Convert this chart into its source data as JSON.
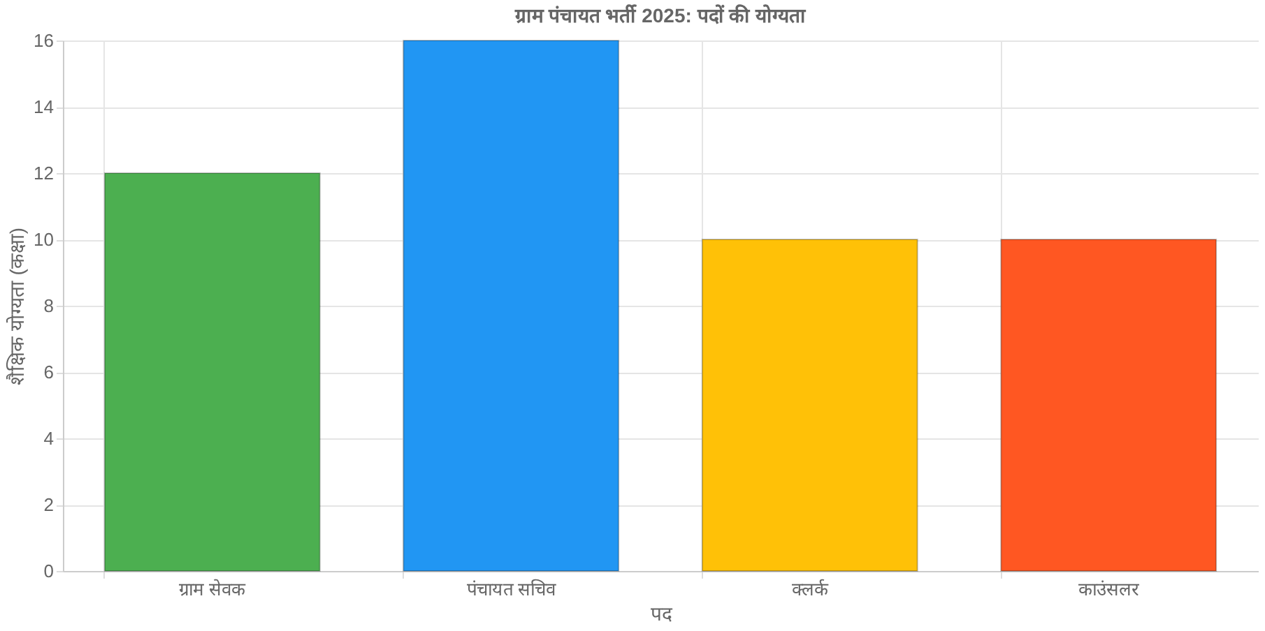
{
  "chart_data": {
    "type": "bar",
    "title": "ग्राम पंचायत भर्ती 2025: पदों की योग्यता",
    "xlabel": "पद",
    "ylabel": "शैक्षिक योग्यता (कक्षा)",
    "categories": [
      "ग्राम सेवक",
      "पंचायत सचिव",
      "क्लर्क",
      "काउंसलर"
    ],
    "values": [
      12,
      16,
      10,
      10
    ],
    "colors": [
      "#4caf50",
      "#2196f3",
      "#ffc107",
      "#ff5722"
    ],
    "ylim": [
      0,
      16
    ],
    "yticks": [
      0,
      2,
      4,
      6,
      8,
      10,
      12,
      14,
      16
    ],
    "grid": true
  }
}
